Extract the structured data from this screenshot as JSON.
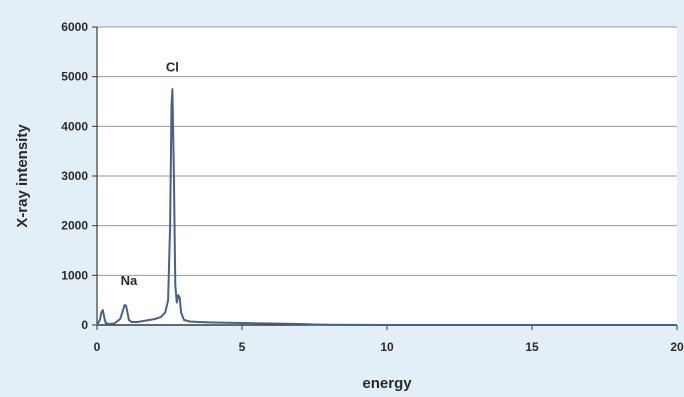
{
  "chart_data": {
    "type": "line",
    "title": "",
    "xlabel": "energy",
    "ylabel": "X-ray intensity",
    "xlim": [
      0,
      20
    ],
    "ylim": [
      0,
      6000
    ],
    "x_ticks": [
      0,
      5,
      10,
      15,
      20
    ],
    "y_ticks": [
      0,
      1000,
      2000,
      3000,
      4000,
      5000,
      6000
    ],
    "grid": "horizontal",
    "legend": "none",
    "line_color": "#4a5f8c",
    "series": [
      {
        "x": [
          0.0,
          0.1,
          0.15,
          0.2,
          0.25,
          0.3,
          0.4,
          0.6,
          0.8,
          0.9,
          0.95,
          1.0,
          1.05,
          1.1,
          1.2,
          1.4,
          1.6,
          1.8,
          2.0,
          2.2,
          2.35,
          2.45,
          2.52,
          2.57,
          2.6,
          2.65,
          2.7,
          2.75,
          2.8,
          2.85,
          2.9,
          3.0,
          3.2,
          3.5,
          4.0,
          5.0,
          6.0,
          7.0,
          7.5,
          8.0,
          10.0,
          12.0,
          15.0,
          18.0,
          20.0
        ],
        "y": [
          0,
          100,
          250,
          300,
          150,
          40,
          20,
          30,
          120,
          300,
          400,
          390,
          250,
          100,
          60,
          60,
          80,
          100,
          120,
          160,
          250,
          500,
          2000,
          4400,
          4750,
          3000,
          800,
          450,
          600,
          550,
          250,
          100,
          70,
          60,
          50,
          40,
          30,
          20,
          10,
          5,
          0,
          0,
          0,
          0,
          0
        ]
      }
    ],
    "annotations": [
      {
        "text": "Cl",
        "x": 2.6,
        "y": 5000
      },
      {
        "text": "Na",
        "x": 1.1,
        "y": 700
      }
    ]
  }
}
